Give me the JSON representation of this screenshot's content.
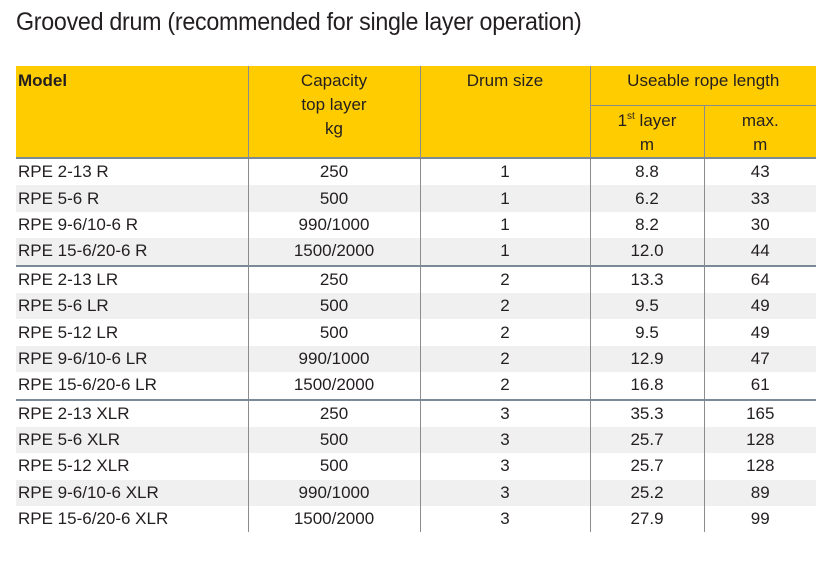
{
  "title": "Grooved drum (recommended for single layer operation)",
  "header": {
    "model": "Model",
    "capacity_line1": "Capacity",
    "capacity_line2": "top layer",
    "capacity_unit": "kg",
    "drum_size": "Drum size",
    "rope_length": "Useable rope length",
    "first_layer_num": "1",
    "first_layer_sup": "st",
    "first_layer_word": " layer",
    "first_layer_unit": "m",
    "max_label": "max.",
    "max_unit": "m"
  },
  "groups": [
    {
      "rows": [
        {
          "model": "RPE 2-13 R",
          "capacity": "250",
          "drum": "1",
          "first": "8.8",
          "max": "43"
        },
        {
          "model": "RPE 5-6 R",
          "capacity": "500",
          "drum": "1",
          "first": "6.2",
          "max": "33"
        },
        {
          "model": "RPE 9-6/10-6 R",
          "capacity": "990/1000",
          "drum": "1",
          "first": "8.2",
          "max": "30"
        },
        {
          "model": "RPE 15-6/20-6 R",
          "capacity": "1500/2000",
          "drum": "1",
          "first": "12.0",
          "max": "44"
        }
      ]
    },
    {
      "rows": [
        {
          "model": "RPE 2-13 LR",
          "capacity": "250",
          "drum": "2",
          "first": "13.3",
          "max": "64"
        },
        {
          "model": "RPE 5-6 LR",
          "capacity": "500",
          "drum": "2",
          "first": "9.5",
          "max": "49"
        },
        {
          "model": "RPE 5-12 LR",
          "capacity": "500",
          "drum": "2",
          "first": "9.5",
          "max": "49"
        },
        {
          "model": "RPE 9-6/10-6 LR",
          "capacity": "990/1000",
          "drum": "2",
          "first": "12.9",
          "max": "47"
        },
        {
          "model": "RPE 15-6/20-6 LR",
          "capacity": "1500/2000",
          "drum": "2",
          "first": "16.8",
          "max": "61"
        }
      ]
    },
    {
      "rows": [
        {
          "model": "RPE 2-13 XLR",
          "capacity": "250",
          "drum": "3",
          "first": "35.3",
          "max": "165"
        },
        {
          "model": "RPE 5-6 XLR",
          "capacity": "500",
          "drum": "3",
          "first": "25.7",
          "max": "128"
        },
        {
          "model": "RPE 5-12 XLR",
          "capacity": "500",
          "drum": "3",
          "first": "25.7",
          "max": "128"
        },
        {
          "model": "RPE 9-6/10-6 XLR",
          "capacity": "990/1000",
          "drum": "3",
          "first": "25.2",
          "max": "89"
        },
        {
          "model": "RPE 15-6/20-6 XLR",
          "capacity": "1500/2000",
          "drum": "3",
          "first": "27.9",
          "max": "99"
        }
      ]
    }
  ]
}
